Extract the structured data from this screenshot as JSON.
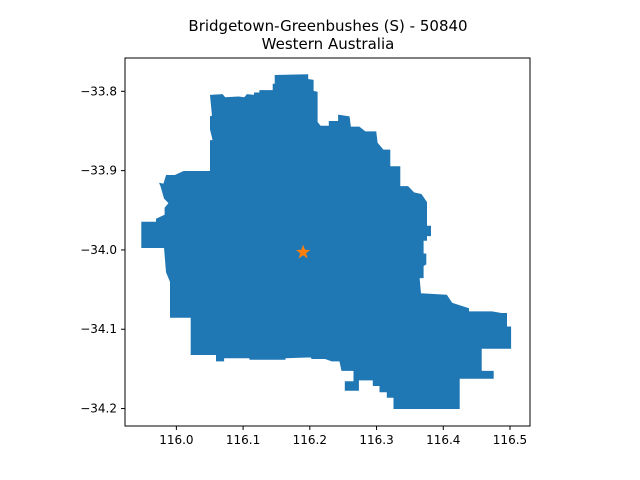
{
  "title_line1": "Bridgetown-Greenbushes (S) - 50840",
  "title_line2": "Western Australia",
  "colors": {
    "region_fill": "#1f77b4",
    "marker": "#ff7f0e",
    "axes": "#000000",
    "background": "#ffffff"
  },
  "chart_data": {
    "type": "map",
    "xlim": [
      115.923,
      116.53
    ],
    "ylim": [
      -34.222,
      -33.758
    ],
    "x_ticks": [
      {
        "value": 116.0,
        "label": "116.0"
      },
      {
        "value": 116.1,
        "label": "116.1"
      },
      {
        "value": 116.2,
        "label": "116.2"
      },
      {
        "value": 116.3,
        "label": "116.3"
      },
      {
        "value": 116.4,
        "label": "116.4"
      },
      {
        "value": 116.5,
        "label": "116.5"
      }
    ],
    "y_ticks": [
      {
        "value": -33.8,
        "label": "−33.8"
      },
      {
        "value": -33.9,
        "label": "−33.9"
      },
      {
        "value": -34.0,
        "label": "−34.0"
      },
      {
        "value": -34.1,
        "label": "−34.1"
      },
      {
        "value": -34.2,
        "label": "−34.2"
      }
    ],
    "marker": {
      "shape": "star",
      "lon": 116.19,
      "lat": -34.003
    },
    "region_outline": [
      [
        116.051,
        -33.805
      ],
      [
        116.069,
        -33.804
      ],
      [
        116.073,
        -33.808
      ],
      [
        116.093,
        -33.807
      ],
      [
        116.102,
        -33.808
      ],
      [
        116.106,
        -33.804
      ],
      [
        116.117,
        -33.805
      ],
      [
        116.117,
        -33.802
      ],
      [
        116.125,
        -33.802
      ],
      [
        116.125,
        -33.799
      ],
      [
        116.145,
        -33.799
      ],
      [
        116.145,
        -33.791
      ],
      [
        116.148,
        -33.791
      ],
      [
        116.148,
        -33.78
      ],
      [
        116.197,
        -33.779
      ],
      [
        116.197,
        -33.785
      ],
      [
        116.205,
        -33.786
      ],
      [
        116.205,
        -33.8
      ],
      [
        116.211,
        -33.801
      ],
      [
        116.211,
        -33.839
      ],
      [
        116.216,
        -33.844
      ],
      [
        116.229,
        -33.844
      ],
      [
        116.229,
        -33.838
      ],
      [
        116.243,
        -33.838
      ],
      [
        116.243,
        -33.83
      ],
      [
        116.259,
        -33.832
      ],
      [
        116.261,
        -33.845
      ],
      [
        116.274,
        -33.845
      ],
      [
        116.283,
        -33.851
      ],
      [
        116.299,
        -33.851
      ],
      [
        116.301,
        -33.865
      ],
      [
        116.31,
        -33.874
      ],
      [
        116.32,
        -33.874
      ],
      [
        116.32,
        -33.895
      ],
      [
        116.335,
        -33.895
      ],
      [
        116.335,
        -33.92
      ],
      [
        116.347,
        -33.92
      ],
      [
        116.356,
        -33.928
      ],
      [
        116.367,
        -33.93
      ],
      [
        116.375,
        -33.94
      ],
      [
        116.375,
        -33.97
      ],
      [
        116.381,
        -33.97
      ],
      [
        116.381,
        -33.982
      ],
      [
        116.375,
        -33.982
      ],
      [
        116.375,
        -33.988
      ],
      [
        116.37,
        -33.988
      ],
      [
        116.37,
        -34.005
      ],
      [
        116.374,
        -34.005
      ],
      [
        116.374,
        -34.018
      ],
      [
        116.37,
        -34.02
      ],
      [
        116.37,
        -34.035
      ],
      [
        116.364,
        -34.035
      ],
      [
        116.366,
        -34.055
      ],
      [
        116.405,
        -34.057
      ],
      [
        116.413,
        -34.067
      ],
      [
        116.438,
        -34.074
      ],
      [
        116.438,
        -34.078
      ],
      [
        116.473,
        -34.078
      ],
      [
        116.487,
        -34.08
      ],
      [
        116.495,
        -34.08
      ],
      [
        116.495,
        -34.097
      ],
      [
        116.501,
        -34.097
      ],
      [
        116.501,
        -34.124
      ],
      [
        116.457,
        -34.124
      ],
      [
        116.457,
        -34.153
      ],
      [
        116.475,
        -34.153
      ],
      [
        116.475,
        -34.162
      ],
      [
        116.424,
        -34.162
      ],
      [
        116.424,
        -34.2
      ],
      [
        116.326,
        -34.2
      ],
      [
        116.326,
        -34.186
      ],
      [
        116.316,
        -34.186
      ],
      [
        116.316,
        -34.179
      ],
      [
        116.305,
        -34.179
      ],
      [
        116.305,
        -34.171
      ],
      [
        116.295,
        -34.171
      ],
      [
        116.295,
        -34.164
      ],
      [
        116.273,
        -34.164
      ],
      [
        116.273,
        -34.177
      ],
      [
        116.253,
        -34.177
      ],
      [
        116.253,
        -34.166
      ],
      [
        116.266,
        -34.166
      ],
      [
        116.266,
        -34.152
      ],
      [
        116.248,
        -34.152
      ],
      [
        116.245,
        -34.14
      ],
      [
        116.233,
        -34.14
      ],
      [
        116.223,
        -34.137
      ],
      [
        116.203,
        -34.137
      ],
      [
        116.202,
        -34.135
      ],
      [
        116.163,
        -34.136
      ],
      [
        116.163,
        -34.138
      ],
      [
        116.11,
        -34.138
      ],
      [
        116.11,
        -34.136
      ],
      [
        116.071,
        -34.136
      ],
      [
        116.071,
        -34.14
      ],
      [
        116.06,
        -34.14
      ],
      [
        116.06,
        -34.132
      ],
      [
        116.022,
        -34.132
      ],
      [
        116.022,
        -34.085
      ],
      [
        115.991,
        -34.085
      ],
      [
        115.991,
        -34.04
      ],
      [
        115.985,
        -34.028
      ],
      [
        115.982,
        -33.997
      ],
      [
        115.948,
        -33.997
      ],
      [
        115.948,
        -33.965
      ],
      [
        115.97,
        -33.965
      ],
      [
        115.97,
        -33.961
      ],
      [
        115.983,
        -33.956
      ],
      [
        115.983,
        -33.947
      ],
      [
        115.989,
        -33.941
      ],
      [
        115.982,
        -33.935
      ],
      [
        115.977,
        -33.92
      ],
      [
        115.975,
        -33.916
      ],
      [
        115.981,
        -33.917
      ],
      [
        115.985,
        -33.906
      ],
      [
        115.998,
        -33.906
      ],
      [
        116.011,
        -33.901
      ],
      [
        116.051,
        -33.901
      ],
      [
        116.051,
        -33.862
      ],
      [
        116.055,
        -33.862
      ],
      [
        116.051,
        -33.848
      ],
      [
        116.051,
        -33.832
      ],
      [
        116.054,
        -33.831
      ],
      [
        116.051,
        -33.805
      ]
    ]
  }
}
